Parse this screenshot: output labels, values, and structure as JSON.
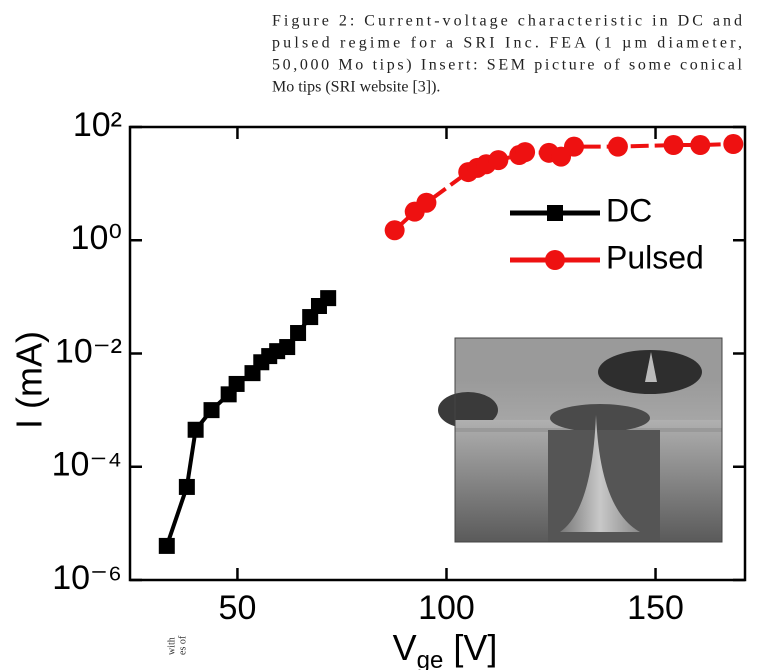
{
  "chart_data": {
    "type": "line",
    "caption": [
      "Figure 2: Current-voltage characteristic in DC and",
      "pulsed regime for a SRI Inc. FEA (1 µm diameter,",
      "50,000 Mo tips) Insert: SEM picture of some conical",
      "Mo tips (SRI website [3])."
    ],
    "xlabel": {
      "main": "V",
      "sub": "ge",
      "unit": "[V]"
    },
    "ylabel": "I (mA)",
    "margin_text": [
      "with",
      "es of"
    ],
    "xlim": [
      24.3,
      171.4
    ],
    "ylim": [
      1e-06,
      100
    ],
    "ylog": true,
    "xticks": [
      50,
      100,
      150
    ],
    "yticks": [
      {
        "value": 100,
        "label": "10²"
      },
      {
        "value": 1,
        "label": "10⁰"
      },
      {
        "value": 0.01,
        "label": "10⁻²"
      },
      {
        "value": 0.0001,
        "label": "10⁻⁴"
      },
      {
        "value": 1e-06,
        "label": "10⁻⁶"
      }
    ],
    "series": [
      {
        "name": "DC",
        "color": "#000000",
        "marker": "square",
        "x": [
          33.1,
          37.9,
          40.0,
          43.8,
          47.9,
          49.8,
          53.6,
          55.7,
          57.6,
          59.5,
          61.9,
          64.5,
          67.4,
          69.5,
          71.7
        ],
        "values": [
          4e-06,
          4.4e-05,
          0.00045,
          0.001,
          0.0019,
          0.0029,
          0.0045,
          0.007,
          0.009,
          0.011,
          0.013,
          0.023,
          0.044,
          0.069,
          0.095
        ]
      },
      {
        "name": "Pulsed",
        "color": "#ee1111",
        "marker": "circle",
        "x": [
          87.6,
          92.4,
          95.2,
          105.2,
          107.4,
          109.5,
          112.4,
          117.4,
          118.8,
          124.5,
          127.4,
          130.5,
          141.0,
          154.3,
          160.7,
          168.6
        ],
        "values": [
          1.5,
          3.2,
          4.6,
          16,
          19,
          22,
          26,
          32,
          36,
          35,
          30,
          45,
          45,
          48,
          48,
          50
        ]
      }
    ]
  }
}
